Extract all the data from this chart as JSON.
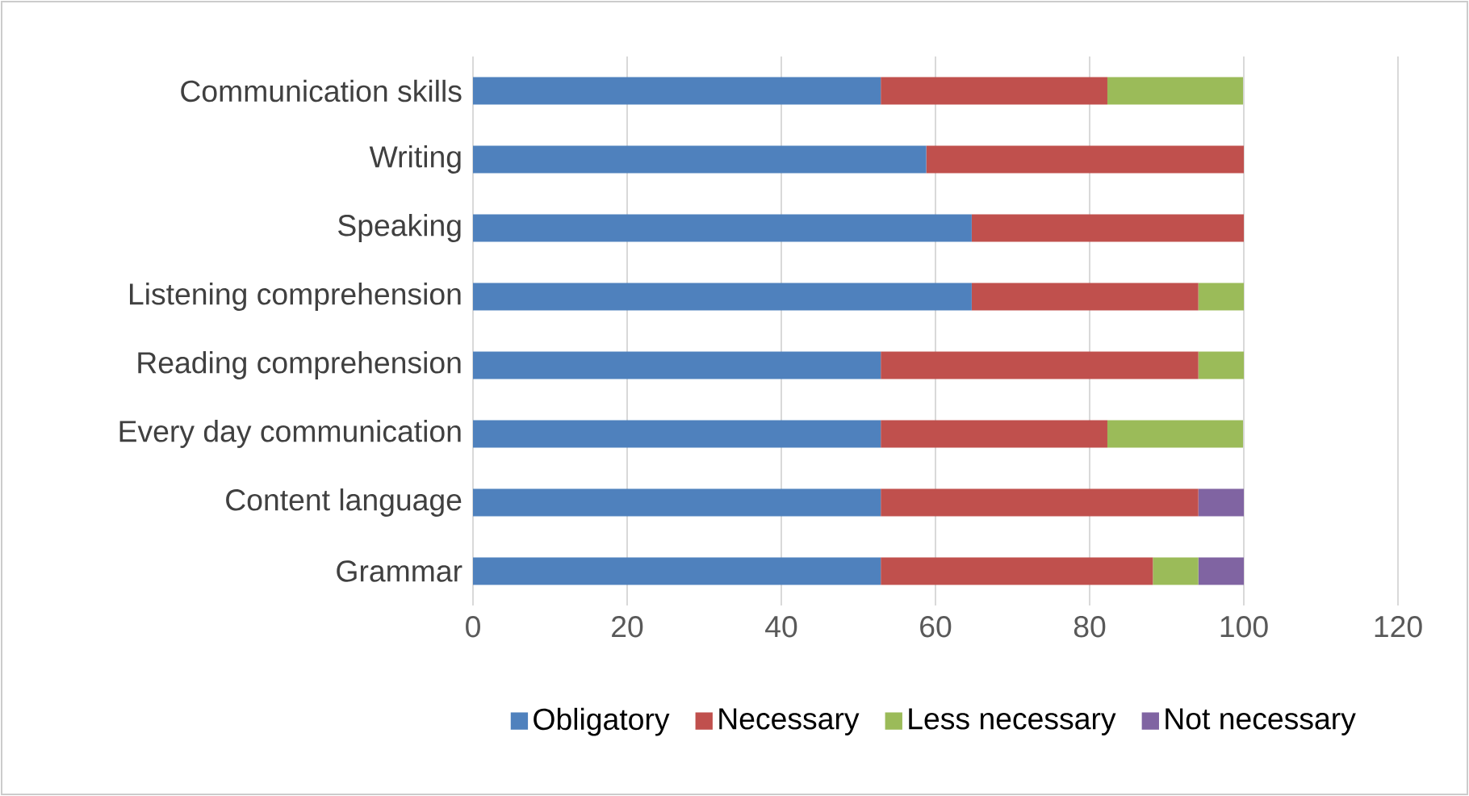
{
  "chart_data": {
    "type": "bar",
    "orientation": "horizontal",
    "stacked": true,
    "categories": [
      "Communication skills",
      "Writing",
      "Speaking",
      "Listening comprehension",
      "Reading comprehension",
      "Every day communication",
      "Content language",
      "Grammar"
    ],
    "series": [
      {
        "name": "Obligatory",
        "color": "#4f81bd",
        "values": [
          52.9,
          58.8,
          64.7,
          64.7,
          52.9,
          52.9,
          52.9,
          52.9
        ]
      },
      {
        "name": "Necessary",
        "color": "#c0504d",
        "values": [
          29.4,
          41.2,
          35.3,
          29.4,
          41.2,
          29.4,
          41.2,
          35.3
        ]
      },
      {
        "name": "Less necessary",
        "color": "#9bbb59",
        "values": [
          17.6,
          0,
          0,
          5.9,
          5.9,
          17.6,
          0,
          5.9
        ]
      },
      {
        "name": "Not necessary",
        "color": "#8064a2",
        "values": [
          0,
          0,
          0,
          0,
          0,
          0,
          5.9,
          5.9
        ]
      }
    ],
    "xlim": [
      0,
      120
    ],
    "xticks": [
      0,
      20,
      40,
      60,
      80,
      100,
      120
    ],
    "grid": "x",
    "legend": "bottom"
  }
}
